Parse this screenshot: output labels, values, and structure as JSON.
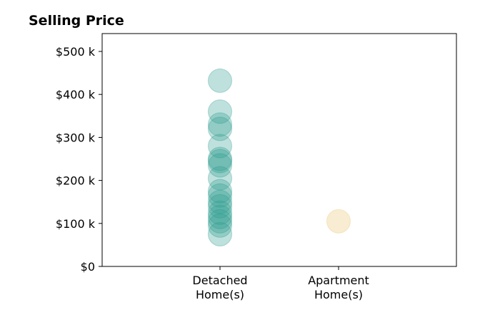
{
  "chart_data": {
    "type": "scatter",
    "title": "Selling Price",
    "xlabel": "",
    "ylabel": "",
    "categories": [
      [
        "Detached",
        "Home(s)"
      ],
      [
        "Apartment",
        "Home(s)"
      ]
    ],
    "ylim": [
      0,
      540000
    ],
    "yticks": [
      0,
      100000,
      200000,
      300000,
      400000,
      500000
    ],
    "ytick_labels": [
      "$0",
      "$100 k",
      "$200 k",
      "$300 k",
      "$400 k",
      "$500 k"
    ],
    "grid": false,
    "series": [
      {
        "category": 0,
        "color": "#2a9d8f",
        "values": [
          75000,
          95000,
          105000,
          115000,
          125000,
          140000,
          150000,
          165000,
          175000,
          205000,
          235000,
          245000,
          250000,
          280000,
          320000,
          330000,
          360000,
          432000
        ]
      },
      {
        "category": 1,
        "color": "#e9c46a",
        "values": [
          105000
        ]
      }
    ]
  }
}
